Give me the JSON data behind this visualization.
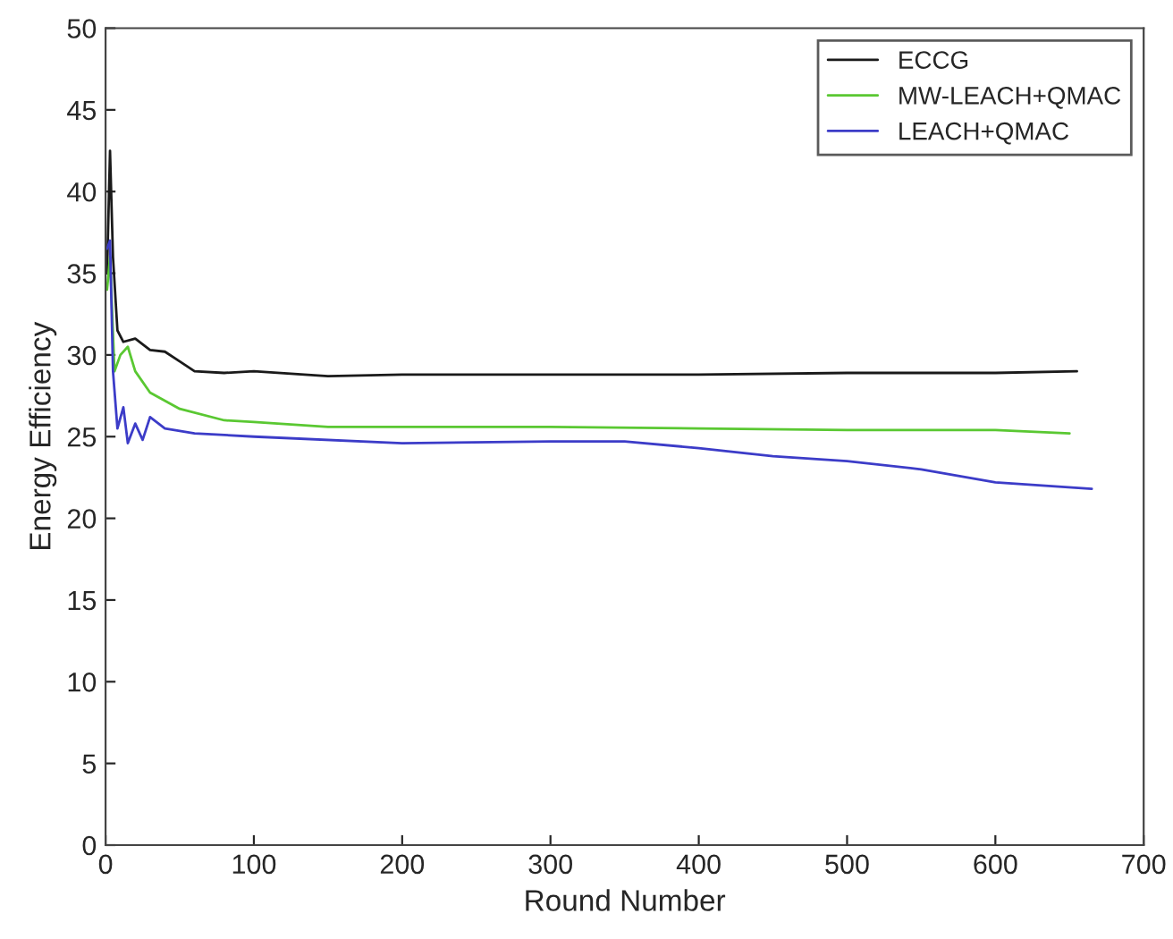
{
  "chart_data": {
    "type": "line",
    "xlabel": "Round Number",
    "ylabel": "Energy Efficiency",
    "xlim": [
      0,
      700
    ],
    "xticks": [
      0,
      100,
      200,
      300,
      400,
      500,
      600,
      700
    ],
    "ylim": [
      0,
      50
    ],
    "yticks": [
      0,
      5,
      10,
      15,
      20,
      25,
      30,
      35,
      40,
      45,
      50
    ],
    "grid": false,
    "legend": "top right",
    "series": [
      {
        "name": "ECCG",
        "color": "#1a1a1a",
        "x": [
          1,
          3,
          5,
          8,
          12,
          20,
          30,
          40,
          50,
          60,
          80,
          100,
          150,
          200,
          300,
          400,
          500,
          600,
          655
        ],
        "values": [
          35,
          42.5,
          36,
          31.5,
          30.8,
          31,
          30.3,
          30.2,
          29.6,
          29,
          28.9,
          29,
          28.7,
          28.8,
          28.8,
          28.8,
          28.9,
          28.9,
          29
        ]
      },
      {
        "name": "MW-LEACH+QMAC",
        "color": "#5ac832",
        "x": [
          1,
          3,
          6,
          10,
          15,
          20,
          30,
          50,
          80,
          100,
          150,
          200,
          300,
          400,
          500,
          600,
          650
        ],
        "values": [
          34,
          36,
          29,
          30,
          30.5,
          29,
          27.7,
          26.7,
          26,
          25.9,
          25.6,
          25.6,
          25.6,
          25.5,
          25.4,
          25.4,
          25.2
        ]
      },
      {
        "name": "LEACH+QMAC",
        "color": "#3c3cc8",
        "x": [
          1,
          3,
          5,
          8,
          12,
          15,
          20,
          25,
          30,
          40,
          60,
          100,
          200,
          300,
          350,
          400,
          450,
          500,
          550,
          600,
          665
        ],
        "values": [
          36.5,
          37,
          29,
          25.5,
          26.8,
          24.6,
          25.8,
          24.8,
          26.2,
          25.5,
          25.2,
          25,
          24.6,
          24.7,
          24.7,
          24.3,
          23.8,
          23.5,
          23,
          22.2,
          21.8
        ]
      }
    ]
  }
}
